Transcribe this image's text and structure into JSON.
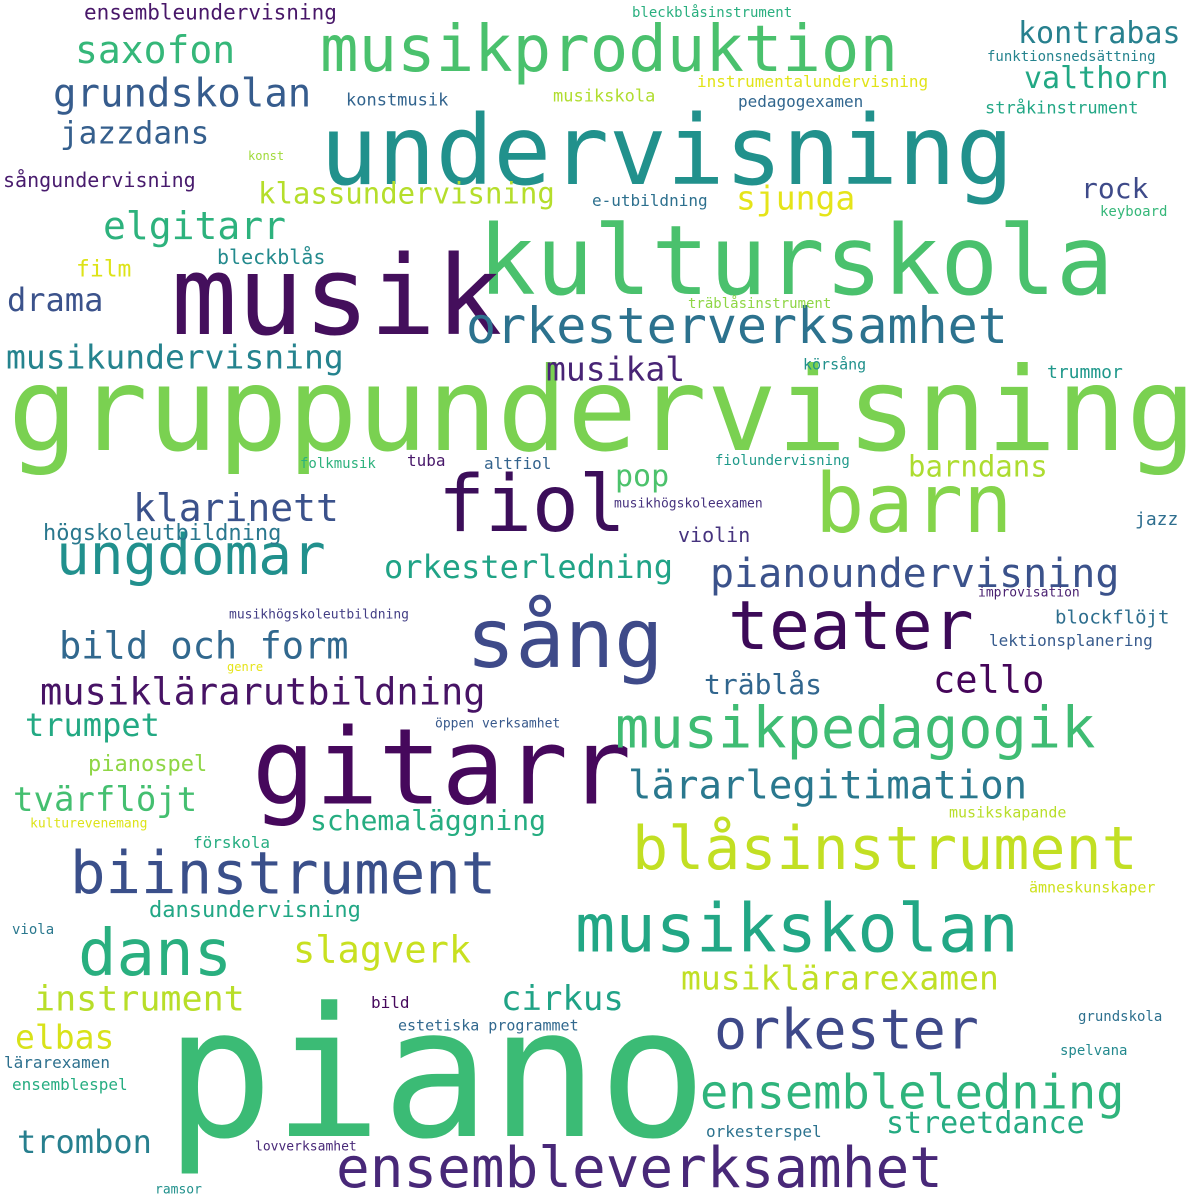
{
  "words": [
    {
      "text": "gruppundervisning",
      "color": "#7ad151"
    },
    {
      "text": "piano",
      "color": "#3bbb75"
    },
    {
      "text": "undervisning",
      "color": "#21918c"
    },
    {
      "text": "kulturskola",
      "color": "#4ac16d"
    },
    {
      "text": "musik",
      "color": "#440f5c"
    },
    {
      "text": "gitarr",
      "color": "#46085c"
    },
    {
      "text": "sång",
      "color": "#3e4a89"
    },
    {
      "text": "barn",
      "color": "#84d44b"
    },
    {
      "text": "fiol",
      "color": "#3c0e5a"
    },
    {
      "text": "musikproduktion",
      "color": "#4ac16d"
    },
    {
      "text": "orkesterverksamhet",
      "color": "#2c728e"
    },
    {
      "text": "ungdomar",
      "color": "#21908d"
    },
    {
      "text": "teater",
      "color": "#3c0a58"
    },
    {
      "text": "musikpedagogik",
      "color": "#3fbc73"
    },
    {
      "text": "biinstrument",
      "color": "#3a4f8a"
    },
    {
      "text": "blåsinstrument",
      "color": "#c2df23"
    },
    {
      "text": "musikskolan",
      "color": "#22a785"
    },
    {
      "text": "dans",
      "color": "#29af7f"
    },
    {
      "text": "orkester",
      "color": "#3e4989"
    },
    {
      "text": "ensembleverksamhet",
      "color": "#482878"
    },
    {
      "text": "ensembleledning",
      "color": "#2fb47c"
    },
    {
      "text": "lärarlegitimation",
      "color": "#2a788e"
    },
    {
      "text": "pianoundervisning",
      "color": "#3b528b"
    },
    {
      "text": "musiklärarutbildning",
      "color": "#471365"
    },
    {
      "text": "saxofon",
      "color": "#35b779"
    },
    {
      "text": "grundskolan",
      "color": "#365c8d"
    },
    {
      "text": "elgitarr",
      "color": "#2db27d"
    },
    {
      "text": "kontrabas",
      "color": "#27808e"
    },
    {
      "text": "valthorn",
      "color": "#22a884"
    },
    {
      "text": "jazzdans",
      "color": "#355f8d"
    },
    {
      "text": "klassundervisning",
      "color": "#b5de2b"
    },
    {
      "text": "sjunga",
      "color": "#e5e419"
    },
    {
      "text": "rock",
      "color": "#3e4a89"
    },
    {
      "text": "drama",
      "color": "#3b528b"
    },
    {
      "text": "musikundervisning",
      "color": "#25838e"
    },
    {
      "text": "musikal",
      "color": "#482475"
    },
    {
      "text": "klarinett",
      "color": "#3b528b"
    },
    {
      "text": "bild och form",
      "color": "#31688e"
    },
    {
      "text": "orkesterledning",
      "color": "#20a386"
    },
    {
      "text": "cello",
      "color": "#450559"
    },
    {
      "text": "slagverk",
      "color": "#c8e020"
    },
    {
      "text": "musiklärarexamen",
      "color": "#c0df25"
    },
    {
      "text": "instrument",
      "color": "#b8de29"
    },
    {
      "text": "cirkus",
      "color": "#20a386"
    },
    {
      "text": "elbas",
      "color": "#d8e219"
    },
    {
      "text": "trombon",
      "color": "#277f8e"
    },
    {
      "text": "streetdance",
      "color": "#25ab82"
    },
    {
      "text": "schemaläggning",
      "color": "#26ad81"
    },
    {
      "text": "tvärflöjt",
      "color": "#44bf70"
    },
    {
      "text": "trumpet",
      "color": "#23a983"
    },
    {
      "text": "träblås",
      "color": "#31668e"
    },
    {
      "text": "barndans",
      "color": "#addc30"
    },
    {
      "text": "pop",
      "color": "#4cc26c"
    },
    {
      "text": "dansundervisning",
      "color": "#22a785"
    },
    {
      "text": "pianospel",
      "color": "#8ed645"
    },
    {
      "text": "högskoleutbildning",
      "color": "#2a788e"
    },
    {
      "text": "ensembleundervisning",
      "color": "#481769"
    },
    {
      "text": "sångundervisning",
      "color": "#481b6d"
    },
    {
      "text": "bleckblås",
      "color": "#238a8d"
    },
    {
      "text": "film",
      "color": "#dde318"
    },
    {
      "text": "trummor",
      "color": "#1f988b"
    },
    {
      "text": "violin",
      "color": "#46337e"
    },
    {
      "text": "jazz",
      "color": "#2e6e8e"
    },
    {
      "text": "blockflöjt",
      "color": "#2e6e8e"
    },
    {
      "text": "konstmusik",
      "color": "#32648e"
    },
    {
      "text": "musikskola",
      "color": "#b0dd2f"
    },
    {
      "text": "pedagogexamen",
      "color": "#31668e"
    },
    {
      "text": "stråkinstrument",
      "color": "#22a785"
    },
    {
      "text": "instrumentalundervisning",
      "color": "#e1e418"
    },
    {
      "text": "e-utbildning",
      "color": "#2d708e"
    },
    {
      "text": "bleckblåsinstrument",
      "color": "#29af7f"
    },
    {
      "text": "funktionsnedsättning",
      "color": "#25838e"
    },
    {
      "text": "konst",
      "color": "#a0da39"
    },
    {
      "text": "keyboard",
      "color": "#35b779"
    },
    {
      "text": "träblåsinstrument",
      "color": "#8ed645"
    },
    {
      "text": "körsång",
      "color": "#21918c"
    },
    {
      "text": "folkmusik",
      "color": "#2db27d"
    },
    {
      "text": "tuba",
      "color": "#48186a"
    },
    {
      "text": "altfiol",
      "color": "#33638d"
    },
    {
      "text": "fiolundervisning",
      "color": "#1f9a8a"
    },
    {
      "text": "musikhögskoleexamen",
      "color": "#46327e"
    },
    {
      "text": "improvisation",
      "color": "#481f70"
    },
    {
      "text": "musikhögskoleutbildning",
      "color": "#433e85"
    },
    {
      "text": "lektionsplanering",
      "color": "#375b8d"
    },
    {
      "text": "genre",
      "color": "#e5e419"
    },
    {
      "text": "öppen verksamhet",
      "color": "#38598c"
    },
    {
      "text": "musikskapande",
      "color": "#b8de29"
    },
    {
      "text": "kulturevenemang",
      "color": "#dde318"
    },
    {
      "text": "förskola",
      "color": "#26ad81"
    },
    {
      "text": "ämneskunskaper",
      "color": "#cde11d"
    },
    {
      "text": "viola",
      "color": "#2a788e"
    },
    {
      "text": "bild",
      "color": "#46085c"
    },
    {
      "text": "estetiska programmet",
      "color": "#31688e"
    },
    {
      "text": "grundskola",
      "color": "#2d708e"
    },
    {
      "text": "lärarexamen",
      "color": "#2d708e"
    },
    {
      "text": "spelvana",
      "color": "#23898e"
    },
    {
      "text": "ensemblespel",
      "color": "#26ad81"
    },
    {
      "text": "lovverksamhet",
      "color": "#482878"
    },
    {
      "text": "orkesterspel",
      "color": "#2c728e"
    },
    {
      "text": "ramsor",
      "color": "#21918c"
    }
  ]
}
